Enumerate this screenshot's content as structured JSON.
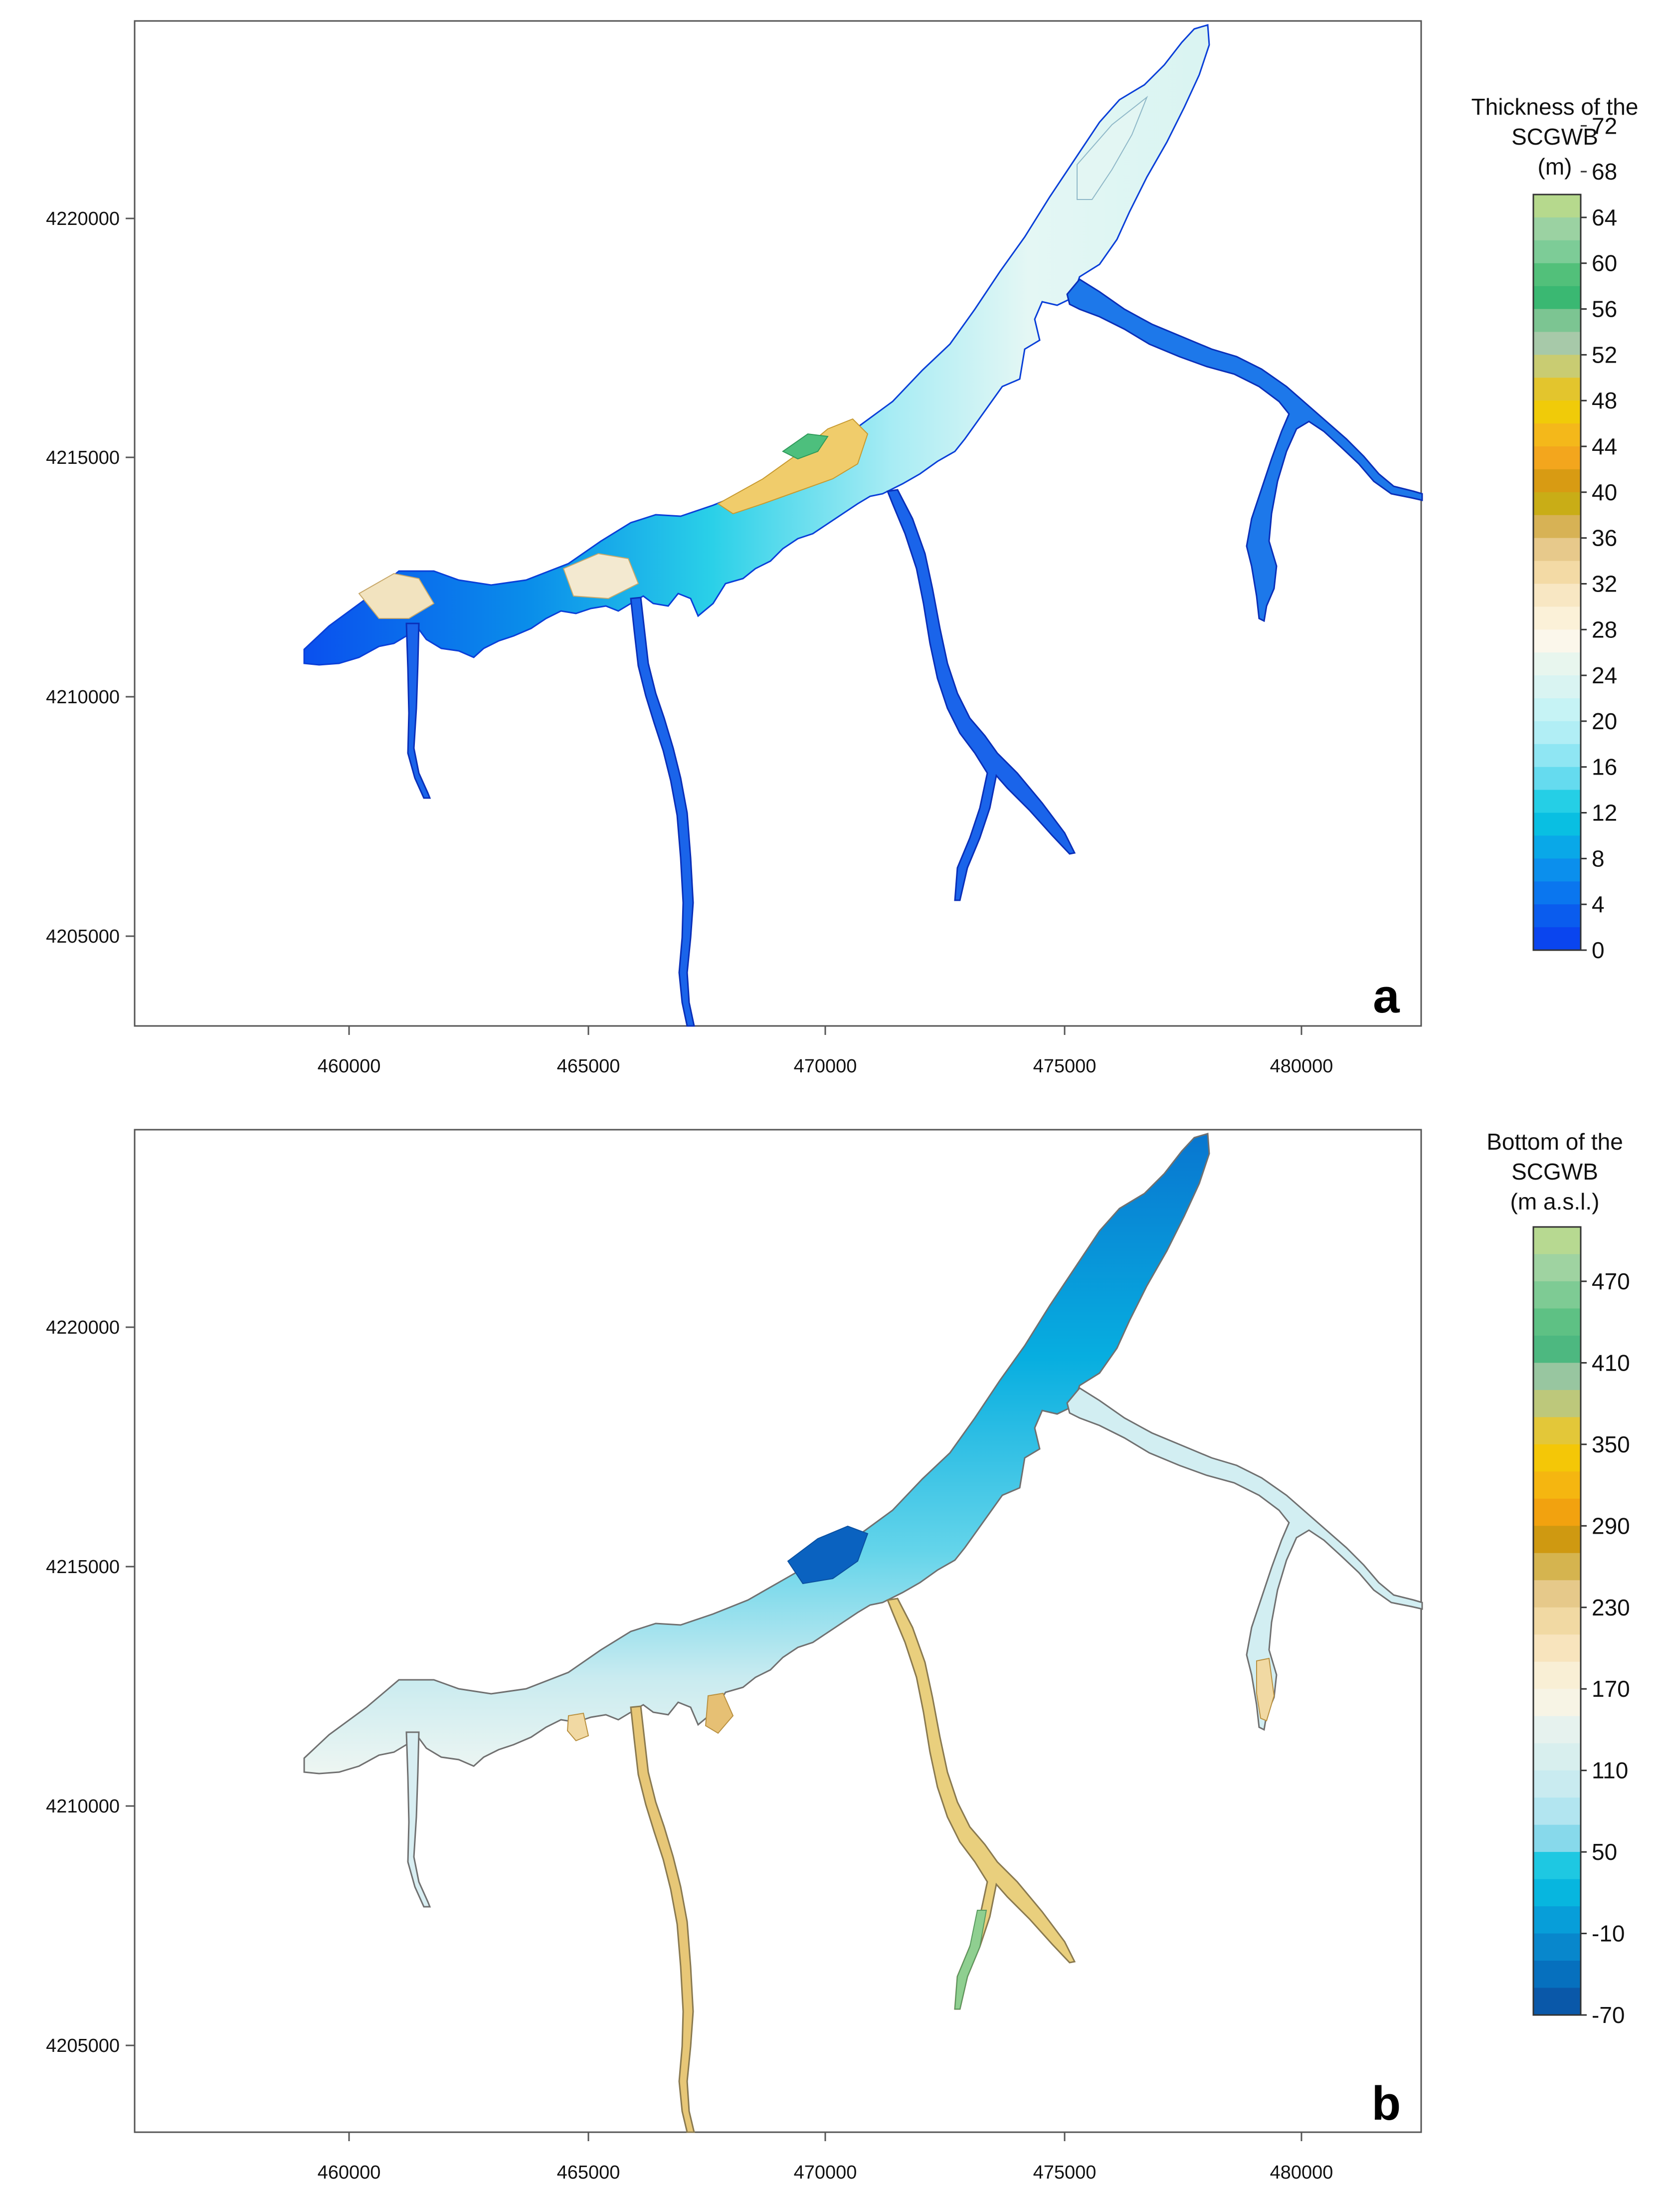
{
  "panels": [
    {
      "id": "a",
      "label": "a",
      "x_ticks": [
        "460000",
        "465000",
        "470000",
        "475000",
        "480000"
      ],
      "y_ticks": [
        "4220000",
        "4215000",
        "4210000",
        "4205000"
      ],
      "colorbar": {
        "title_lines": [
          "Thickness of the",
          "SCGWB",
          "(m)"
        ],
        "labels": [
          "72",
          "68",
          "64",
          "60",
          "56",
          "52",
          "48",
          "44",
          "40",
          "36",
          "32",
          "28",
          "24",
          "20",
          "16",
          "12",
          "8",
          "4",
          "0"
        ],
        "colors": [
          "#b6d98d",
          "#9bd2a2",
          "#7dcc97",
          "#52c07a",
          "#3ab872",
          "#7cc592",
          "#a7c9a9",
          "#c9cc72",
          "#e3c52d",
          "#f0cb09",
          "#f4b81a",
          "#f3a61d",
          "#d89b13",
          "#c9ad16",
          "#d7b255",
          "#e7c98b",
          "#f3daa5",
          "#f8e7c3",
          "#fbf1d8",
          "#fbf7eb",
          "#e8f6ee",
          "#d9f4f2",
          "#c6f3f5",
          "#b1eef5",
          "#8fe6f3",
          "#65dbef",
          "#25cfe6",
          "#09bfe2",
          "#09a8e8",
          "#0b8fed",
          "#0a76ef",
          "#0a5cee",
          "#0a45ef"
        ],
        "tick_every": 2
      }
    },
    {
      "id": "b",
      "label": "b",
      "x_ticks": [
        "460000",
        "465000",
        "470000",
        "475000",
        "480000"
      ],
      "y_ticks": [
        "4220000",
        "4215000",
        "4210000",
        "4205000"
      ],
      "colorbar": {
        "title_lines": [
          "Bottom of the",
          "SCGWB",
          "(m a.s.l.)"
        ],
        "labels": [
          "470",
          "410",
          "350",
          "290",
          "230",
          "170",
          "110",
          "50",
          "-10",
          "-70"
        ],
        "colors": [
          "#b7d991",
          "#9fd3a1",
          "#7ecb94",
          "#5ec184",
          "#4db880",
          "#98c6a0",
          "#bdc87b",
          "#e3c739",
          "#f4c707",
          "#f5b610",
          "#f2a20f",
          "#cf9911",
          "#d5b44f",
          "#e6c98a",
          "#f1d9a3",
          "#f8e4bd",
          "#f9efd5",
          "#f7f4e5",
          "#e6f2ee",
          "#d8efee",
          "#c9ebf0",
          "#b2e5f0",
          "#87d9eb",
          "#1ec8e2",
          "#07b6df",
          "#079ed9",
          "#0887cc",
          "#0670be",
          "#0a58a9"
        ],
        "tick_every": 3
      }
    }
  ]
}
